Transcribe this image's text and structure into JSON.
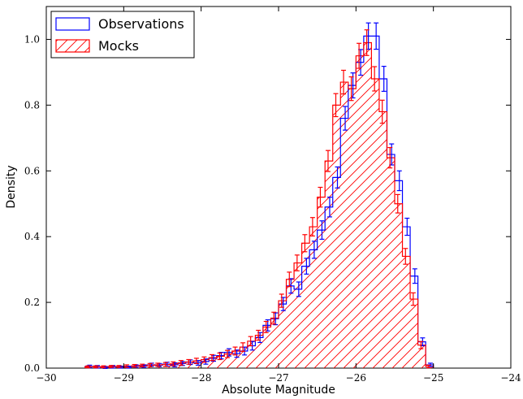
{
  "chart_data": {
    "type": "histogram",
    "title": "",
    "xlabel": "Absolute Magnitude",
    "ylabel": "Density",
    "xlim": [
      -30,
      -24
    ],
    "ylim": [
      0.0,
      1.1
    ],
    "x_ticks": [
      -30,
      -29,
      -28,
      -27,
      -26,
      -25,
      -24
    ],
    "x_tick_labels": [
      "−30",
      "−29",
      "−28",
      "−27",
      "−26",
      "−25",
      "−24"
    ],
    "y_ticks": [
      0.0,
      0.2,
      0.4,
      0.6,
      0.8,
      1.0
    ],
    "y_tick_labels": [
      "0.0",
      "0.2",
      "0.4",
      "0.6",
      "0.8",
      "1.0"
    ],
    "grid": false,
    "legend_position": "top-left",
    "bin_edges": [
      -29.5,
      -29.4,
      -29.3,
      -29.2,
      -29.1,
      -29.0,
      -28.9,
      -28.8,
      -28.7,
      -28.6,
      -28.5,
      -28.4,
      -28.3,
      -28.2,
      -28.1,
      -28.0,
      -27.9,
      -27.8,
      -27.7,
      -27.6,
      -27.5,
      -27.4,
      -27.3,
      -27.2,
      -27.1,
      -27.0,
      -26.9,
      -26.8,
      -26.7,
      -26.6,
      -26.5,
      -26.4,
      -26.3,
      -26.2,
      -26.1,
      -26.0,
      -25.9,
      -25.8,
      -25.7,
      -25.6,
      -25.5,
      -25.4,
      -25.3,
      -25.2,
      -25.1,
      -25.0
    ],
    "series": [
      {
        "name": "Observations",
        "style": "step",
        "color": "#0000ff",
        "values": [
          0.005,
          0.004,
          0.002,
          0.004,
          0.003,
          0.003,
          0.006,
          0.006,
          0.01,
          0.009,
          0.012,
          0.01,
          0.014,
          0.018,
          0.016,
          0.02,
          0.03,
          0.038,
          0.048,
          0.044,
          0.052,
          0.068,
          0.093,
          0.13,
          0.15,
          0.195,
          0.25,
          0.24,
          0.31,
          0.36,
          0.42,
          0.49,
          0.58,
          0.76,
          0.86,
          0.93,
          1.01,
          1.01,
          0.88,
          0.65,
          0.57,
          0.43,
          0.28,
          0.08,
          0.01
        ],
        "errors": [
          0.004,
          0.004,
          0.003,
          0.004,
          0.003,
          0.003,
          0.004,
          0.004,
          0.005,
          0.005,
          0.006,
          0.006,
          0.006,
          0.007,
          0.007,
          0.008,
          0.009,
          0.01,
          0.011,
          0.011,
          0.012,
          0.013,
          0.015,
          0.017,
          0.018,
          0.02,
          0.022,
          0.022,
          0.024,
          0.026,
          0.028,
          0.03,
          0.032,
          0.036,
          0.038,
          0.039,
          0.04,
          0.04,
          0.038,
          0.032,
          0.03,
          0.026,
          0.022,
          0.012,
          0.005
        ]
      },
      {
        "name": "Mocks",
        "style": "hatched",
        "color": "#ff0000",
        "values": [
          0.004,
          0.004,
          0.004,
          0.005,
          0.005,
          0.006,
          0.007,
          0.008,
          0.009,
          0.01,
          0.011,
          0.013,
          0.016,
          0.019,
          0.022,
          0.026,
          0.032,
          0.036,
          0.043,
          0.052,
          0.064,
          0.082,
          0.1,
          0.125,
          0.152,
          0.205,
          0.27,
          0.32,
          0.38,
          0.43,
          0.52,
          0.63,
          0.8,
          0.87,
          0.85,
          0.95,
          0.99,
          0.88,
          0.78,
          0.64,
          0.5,
          0.34,
          0.21,
          0.07,
          0.005
        ],
        "errors": [
          0.003,
          0.003,
          0.003,
          0.003,
          0.003,
          0.004,
          0.004,
          0.004,
          0.005,
          0.005,
          0.006,
          0.006,
          0.007,
          0.007,
          0.008,
          0.008,
          0.009,
          0.01,
          0.011,
          0.012,
          0.013,
          0.014,
          0.015,
          0.017,
          0.018,
          0.02,
          0.022,
          0.024,
          0.026,
          0.028,
          0.03,
          0.032,
          0.035,
          0.036,
          0.036,
          0.038,
          0.039,
          0.037,
          0.035,
          0.031,
          0.028,
          0.024,
          0.019,
          0.011,
          0.004
        ]
      }
    ]
  }
}
